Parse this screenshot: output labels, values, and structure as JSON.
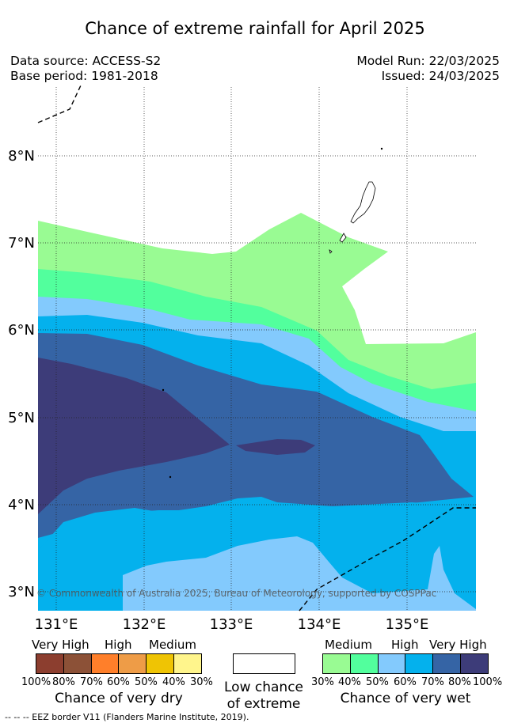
{
  "title": "Chance of extreme rainfall for April 2025",
  "meta": {
    "data_source": "Data source: ACCESS-S2",
    "base_period": "Base period: 1981-2018",
    "model_run": "Model Run: 22/03/2025",
    "issued": "Issued: 24/03/2025"
  },
  "map": {
    "lat_labels": [
      "8°N",
      "7°N",
      "6°N",
      "5°N",
      "4°N",
      "3°N"
    ],
    "lon_labels": [
      "131°E",
      "132°E",
      "133°E",
      "134°E",
      "135°E"
    ],
    "copyright": "© Commonwealth of Australia 2025, Bureau of Meteorology, supported by COSPPac",
    "colors": {
      "wet_30": "#99fb93",
      "wet_40": "#52ff9d",
      "wet_50": "#83cafd",
      "wet_60": "#04b1ed",
      "wet_70": "#3564a5",
      "wet_80": "#3d3c79"
    }
  },
  "legend": {
    "dry_headers": [
      "Very High",
      "High",
      "Medium"
    ],
    "dry_ticks": [
      "100%",
      "80%",
      "70%",
      "60%",
      "50%",
      "40%",
      "30%"
    ],
    "dry_caption": "Chance of very dry",
    "dry_colors": [
      "#8c3e2f",
      "#8c5137",
      "#ff7f2a",
      "#ee9c47",
      "#efc404",
      "#fff58c"
    ],
    "low_caption_1": "Low chance",
    "low_caption_2": "of extreme",
    "wet_headers": [
      "Medium",
      "High",
      "Very High"
    ],
    "wet_ticks": [
      "30%",
      "40%",
      "50%",
      "60%",
      "70%",
      "80%",
      "100%"
    ],
    "wet_caption": "Chance of very wet",
    "wet_colors": [
      "#99fb93",
      "#52ff9d",
      "#83cafd",
      "#04b1ed",
      "#3564a5",
      "#3d3c79"
    ]
  },
  "footnote": "-- -- -- EEZ border V11 (Flanders Marine Institute, 2019)."
}
